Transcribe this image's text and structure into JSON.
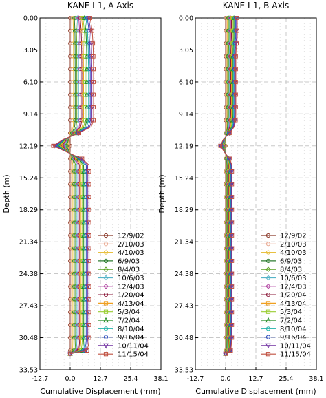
{
  "chart_data": [
    {
      "type": "line",
      "title": "KANE I-1, A-Axis",
      "xlabel": "Cumulative Displacement (mm)",
      "ylabel": "Depth (m)",
      "xlim": [
        -12.7,
        38.1
      ],
      "ylim": [
        0.0,
        33.53
      ],
      "y_reversed": true,
      "grid": true,
      "legend_position": "lower-right",
      "x_ticks": [
        "-12.7",
        "0.0",
        "12.7",
        "25.4",
        "38.1"
      ],
      "y_ticks": [
        "0.00",
        "3.05",
        "6.10",
        "9.14",
        "12.19",
        "15.24",
        "18.29",
        "21.34",
        "24.38",
        "27.43",
        "30.48",
        "33.53"
      ],
      "depth_profile": {
        "d": [
          0.0,
          0.61,
          1.22,
          1.83,
          2.44,
          3.05,
          3.66,
          4.27,
          4.88,
          5.49,
          6.1,
          6.71,
          7.32,
          7.92,
          8.53,
          9.14,
          9.75,
          10.36,
          10.97,
          11.58,
          12.19,
          12.8,
          13.41,
          14.02,
          14.63,
          15.24,
          15.85,
          16.46,
          17.07,
          17.68,
          18.29,
          18.9,
          19.51,
          20.12,
          20.73,
          21.34,
          21.95,
          22.56,
          23.16,
          23.77,
          24.38,
          24.99,
          25.6,
          26.21,
          26.82,
          27.43,
          28.04,
          28.65,
          29.26,
          29.87,
          30.48,
          31.09,
          31.7,
          32.0
        ],
        "s": [
          1.0,
          1.05,
          1.1,
          1.12,
          1.14,
          1.15,
          1.16,
          1.16,
          1.17,
          1.17,
          1.17,
          1.17,
          1.17,
          1.17,
          1.17,
          1.17,
          1.17,
          1.05,
          0.45,
          -0.35,
          -0.85,
          -0.15,
          0.6,
          0.94,
          0.95,
          0.95,
          0.95,
          0.95,
          0.95,
          0.95,
          0.95,
          0.95,
          0.95,
          0.95,
          0.95,
          0.95,
          0.95,
          0.95,
          0.95,
          0.95,
          0.95,
          0.95,
          0.95,
          0.95,
          0.95,
          0.95,
          0.95,
          0.95,
          0.95,
          0.95,
          0.95,
          0.92,
          0.85,
          0.0
        ]
      },
      "series": [
        {
          "name": "12/9/02",
          "magnitude_mm": 0.0,
          "color": "#8b3a2a",
          "marker": "circle"
        },
        {
          "name": "2/10/03",
          "magnitude_mm": 0.6,
          "color": "#e8a890",
          "marker": "circle"
        },
        {
          "name": "4/10/03",
          "magnitude_mm": 1.2,
          "color": "#e8c040",
          "marker": "circle"
        },
        {
          "name": "6/9/03",
          "magnitude_mm": 1.8,
          "color": "#2e7d32",
          "marker": "circle"
        },
        {
          "name": "8/4/03",
          "magnitude_mm": 2.4,
          "color": "#5aa020",
          "marker": "diamond"
        },
        {
          "name": "10/6/03",
          "magnitude_mm": 3.0,
          "color": "#56b4c8",
          "marker": "diamond"
        },
        {
          "name": "12/4/03",
          "magnitude_mm": 3.6,
          "color": "#b040a0",
          "marker": "diamond"
        },
        {
          "name": "1/20/04",
          "magnitude_mm": 4.2,
          "color": "#8b1a3a",
          "marker": "circle"
        },
        {
          "name": "4/13/04",
          "magnitude_mm": 4.8,
          "color": "#f0a020",
          "marker": "square"
        },
        {
          "name": "5/3/04",
          "magnitude_mm": 5.4,
          "color": "#9acd32",
          "marker": "square"
        },
        {
          "name": "7/2/04",
          "magnitude_mm": 6.0,
          "color": "#228b22",
          "marker": "triangle"
        },
        {
          "name": "8/10/04",
          "magnitude_mm": 6.6,
          "color": "#20b2aa",
          "marker": "circle"
        },
        {
          "name": "9/16/04",
          "magnitude_mm": 7.2,
          "color": "#3050c0",
          "marker": "circle"
        },
        {
          "name": "10/11/04",
          "magnitude_mm": 7.8,
          "color": "#7030a0",
          "marker": "triangle-down"
        },
        {
          "name": "11/15/04",
          "magnitude_mm": 8.4,
          "color": "#c05040",
          "marker": "square"
        }
      ]
    },
    {
      "type": "line",
      "title": "KANE I-1, B-Axis",
      "xlabel": "Cumulative Displacement (mm)",
      "ylabel": "Depth (m)",
      "xlim": [
        -12.7,
        38.1
      ],
      "ylim": [
        0.0,
        33.53
      ],
      "y_reversed": true,
      "grid": true,
      "legend_position": "lower-right",
      "x_ticks": [
        "-12.7",
        "0.0",
        "12.7",
        "25.4",
        "38.1"
      ],
      "y_ticks": [
        "0.00",
        "3.05",
        "6.10",
        "9.14",
        "12.19",
        "15.24",
        "18.29",
        "21.34",
        "24.38",
        "27.43",
        "30.48",
        "33.53"
      ],
      "depth_profile": {
        "d": [
          0.0,
          0.61,
          1.22,
          1.83,
          2.44,
          3.05,
          3.66,
          4.27,
          4.88,
          5.49,
          6.1,
          6.71,
          7.32,
          7.92,
          8.53,
          9.14,
          9.75,
          10.36,
          10.97,
          11.58,
          12.19,
          12.8,
          13.41,
          14.02,
          14.63,
          15.24,
          15.85,
          16.46,
          17.07,
          17.68,
          18.29,
          18.9,
          19.51,
          20.12,
          20.73,
          21.34,
          21.95,
          22.56,
          23.16,
          23.77,
          24.38,
          24.99,
          25.6,
          26.21,
          26.82,
          27.43,
          28.04,
          28.65,
          29.26,
          29.87,
          30.48,
          31.09,
          31.7,
          32.0
        ],
        "s": [
          1.0,
          1.0,
          1.0,
          1.0,
          0.95,
          0.9,
          0.88,
          0.88,
          0.88,
          0.88,
          0.88,
          0.88,
          0.88,
          0.88,
          0.88,
          0.88,
          0.86,
          0.75,
          0.35,
          -0.2,
          -0.45,
          -0.1,
          0.35,
          0.55,
          0.55,
          0.55,
          0.55,
          0.55,
          0.55,
          0.55,
          0.55,
          0.55,
          0.55,
          0.55,
          0.55,
          0.55,
          0.55,
          0.55,
          0.55,
          0.55,
          0.55,
          0.55,
          0.55,
          0.55,
          0.55,
          0.55,
          0.55,
          0.55,
          0.55,
          0.55,
          0.55,
          0.5,
          0.45,
          0.0
        ]
      },
      "series": [
        {
          "name": "12/9/02",
          "magnitude_mm": 0.0,
          "color": "#8b3a2a",
          "marker": "circle"
        },
        {
          "name": "2/10/03",
          "magnitude_mm": 0.35,
          "color": "#e8a890",
          "marker": "circle"
        },
        {
          "name": "4/10/03",
          "magnitude_mm": 0.7,
          "color": "#e8c040",
          "marker": "circle"
        },
        {
          "name": "6/9/03",
          "magnitude_mm": 1.05,
          "color": "#2e7d32",
          "marker": "circle"
        },
        {
          "name": "8/4/03",
          "magnitude_mm": 1.4,
          "color": "#5aa020",
          "marker": "diamond"
        },
        {
          "name": "10/6/03",
          "magnitude_mm": 1.75,
          "color": "#56b4c8",
          "marker": "diamond"
        },
        {
          "name": "12/4/03",
          "magnitude_mm": 2.1,
          "color": "#b040a0",
          "marker": "diamond"
        },
        {
          "name": "1/20/04",
          "magnitude_mm": 2.45,
          "color": "#8b1a3a",
          "marker": "circle"
        },
        {
          "name": "4/13/04",
          "magnitude_mm": 2.8,
          "color": "#f0a020",
          "marker": "square"
        },
        {
          "name": "5/3/04",
          "magnitude_mm": 3.15,
          "color": "#9acd32",
          "marker": "square"
        },
        {
          "name": "7/2/04",
          "magnitude_mm": 3.5,
          "color": "#228b22",
          "marker": "triangle"
        },
        {
          "name": "8/10/04",
          "magnitude_mm": 3.85,
          "color": "#20b2aa",
          "marker": "circle"
        },
        {
          "name": "9/16/04",
          "magnitude_mm": 4.2,
          "color": "#3050c0",
          "marker": "circle"
        },
        {
          "name": "10/11/04",
          "magnitude_mm": 4.55,
          "color": "#7030a0",
          "marker": "triangle-down"
        },
        {
          "name": "11/15/04",
          "magnitude_mm": 4.9,
          "color": "#c05040",
          "marker": "square"
        }
      ]
    }
  ]
}
